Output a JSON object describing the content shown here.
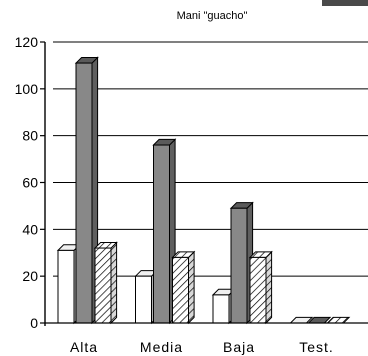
{
  "chart_data": {
    "type": "bar",
    "title": "Mani \"guacho\"",
    "categories": [
      "Alta",
      "Media",
      "Baja",
      "Test."
    ],
    "series": [
      {
        "values": [
          31,
          20,
          12,
          0
        ],
        "fill": "#ffffff",
        "pattern": "none"
      },
      {
        "values": [
          111,
          76,
          49,
          0
        ],
        "fill": "#888888",
        "pattern": "none"
      },
      {
        "values": [
          32,
          28,
          28,
          0
        ],
        "fill": "#ffffff",
        "pattern": "diagonal-hatch"
      }
    ],
    "ylim": [
      0,
      120
    ],
    "yticks": [
      0,
      20,
      40,
      60,
      80,
      100,
      120
    ],
    "grid": true,
    "style": "3d-clustered-bar"
  }
}
